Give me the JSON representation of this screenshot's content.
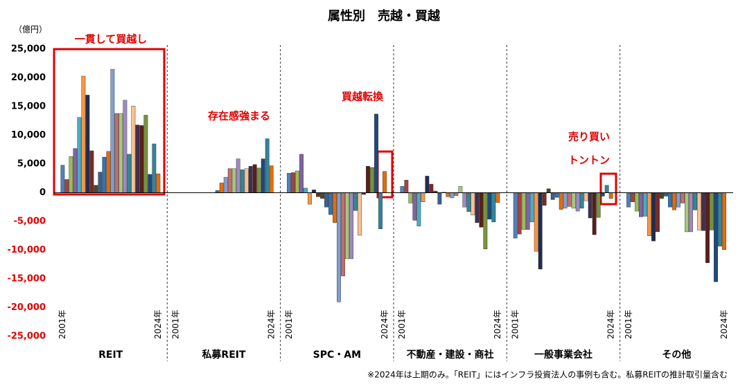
{
  "chart_data": {
    "type": "bar",
    "title": "属性別　売越・買越",
    "y_unit": "（億円）",
    "categories": [
      "2001年",
      null,
      null,
      null,
      null,
      null,
      null,
      null,
      null,
      null,
      null,
      null,
      null,
      null,
      null,
      null,
      null,
      null,
      null,
      null,
      null,
      null,
      null,
      "2024年"
    ],
    "colors": [
      "#4f81bd",
      "#a5423f",
      "#9bbb59",
      "#8064a2",
      "#4aacc6",
      "#f79646",
      "#1f2d4f",
      "#7a2a24",
      "#4a4a2a",
      "#3e5f8a",
      "#2e75b6",
      "#e36c0a",
      "#7f9fd0",
      "#c0706d",
      "#a9c47f",
      "#9e8ac0",
      "#31869b",
      "#fac090",
      "#3f3151",
      "#5a1f1b",
      "#77933c",
      "#1f497d",
      "#31859c",
      "#e46c0a"
    ],
    "groups": [
      {
        "name": "REIT",
        "values": [
          4800,
          2300,
          6300,
          7700,
          13100,
          20300,
          17000,
          7300,
          1300,
          3600,
          6200,
          7200,
          21500,
          13800,
          13800,
          16100,
          6700,
          15100,
          11800,
          11700,
          13500,
          3200,
          8500,
          3300
        ]
      },
      {
        "name": "私募REIT",
        "values": [
          null,
          null,
          null,
          null,
          null,
          null,
          null,
          null,
          null,
          null,
          400,
          1700,
          2700,
          4200,
          4200,
          5900,
          4000,
          4200,
          4600,
          4900,
          4300,
          5900,
          9400,
          4700
        ]
      },
      {
        "name": "SPC・AM",
        "values": [
          3400,
          3500,
          3800,
          6700,
          800,
          -2000,
          500,
          -700,
          -1000,
          -2500,
          -3800,
          -5200,
          -19000,
          -14500,
          -11500,
          -11500,
          -3100,
          -7400,
          -300,
          4600,
          4400,
          13700,
          -6300,
          3700
        ]
      },
      {
        "name": "不動産・建設・商社",
        "values": [
          1100,
          2200,
          -1800,
          -4800,
          -5800,
          -1600,
          2900,
          1500,
          300,
          -2000,
          100,
          -700,
          -900,
          -500,
          1100,
          -2500,
          -3300,
          -3900,
          -5200,
          -6000,
          -9800,
          -4600,
          -5100,
          -1700
        ]
      },
      {
        "name": "一般事業会社",
        "values": [
          -7900,
          -7200,
          -6400,
          -6400,
          -5100,
          -10200,
          -13300,
          -2200,
          700,
          -1200,
          -800,
          -2900,
          -2700,
          -2400,
          -2700,
          -3200,
          -2700,
          -1400,
          -4400,
          -7300,
          -4300,
          -600,
          1300,
          -1000
        ]
      },
      {
        "name": "その他",
        "values": [
          -2500,
          -1600,
          -3200,
          -4200,
          -4100,
          -7500,
          -8400,
          -6800,
          -1000,
          -600,
          -2500,
          -3000,
          -2500,
          -1800,
          -6800,
          -6800,
          -3000,
          -6500,
          -6600,
          -12200,
          -6500,
          -15500,
          -9300,
          -9900
        ]
      }
    ],
    "ylim": [
      -25000,
      25000
    ],
    "yticks": [
      {
        "value": 25000,
        "label": "25,000"
      },
      {
        "value": 20000,
        "label": "20,000"
      },
      {
        "value": 15000,
        "label": "15,000"
      },
      {
        "value": 10000,
        "label": "10,000"
      },
      {
        "value": 5000,
        "label": "5,000"
      },
      0,
      {
        "value": -5000,
        "label": "-5,000"
      },
      {
        "value": -10000,
        "label": "-10,000"
      },
      {
        "value": -15000,
        "label": "-15,000"
      },
      {
        "value": -20000,
        "label": "-20,000"
      },
      {
        "value": -25000,
        "label": "-25,000"
      }
    ],
    "annotations": [
      "一貫して買越し",
      "存在感強まる",
      "買越転換",
      "売り買い",
      "トントン"
    ],
    "note": "※2024年は上期のみ。「REIT」にはインフラ投資法人の事例も含む。私募REITの推計取引量含む"
  }
}
